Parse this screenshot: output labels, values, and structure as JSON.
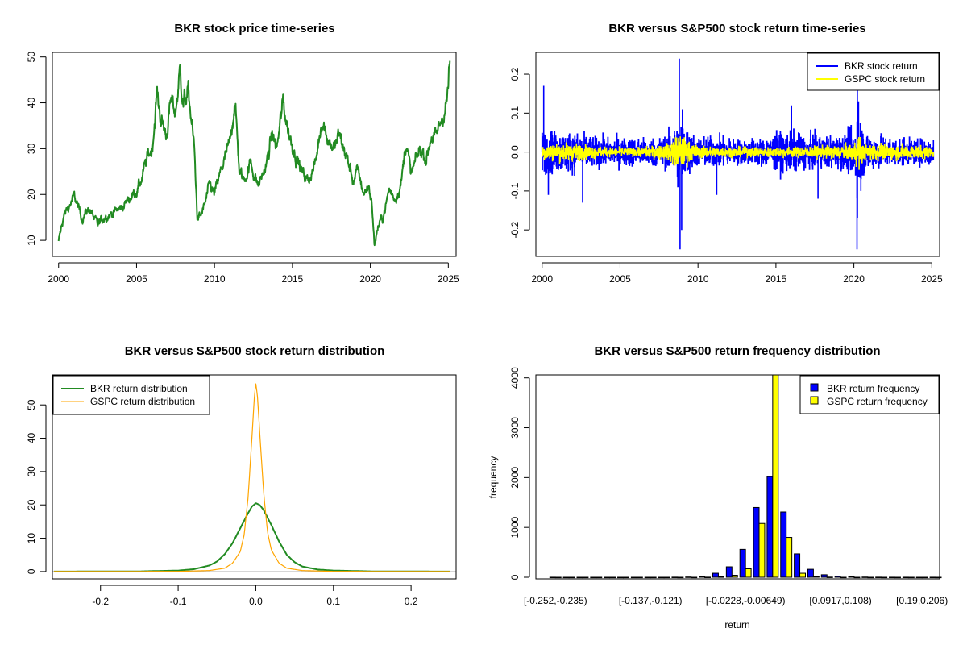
{
  "chart_data": [
    {
      "id": "price",
      "type": "line",
      "title": "BKR stock price time-series",
      "xlim": [
        1999.6,
        2025.5
      ],
      "ylim": [
        6.5,
        51
      ],
      "xticks": [
        2000,
        2005,
        2010,
        2015,
        2020,
        2025
      ],
      "yticks": [
        10,
        20,
        30,
        40,
        50
      ],
      "series": [
        {
          "color": "#228B22",
          "x": [
            2000.0,
            2000.3,
            2000.6,
            2001.0,
            2001.5,
            2002.0,
            2002.5,
            2003.0,
            2003.5,
            2004.0,
            2004.5,
            2005.0,
            2005.3,
            2005.7,
            2006.0,
            2006.3,
            2006.6,
            2006.9,
            2007.2,
            2007.5,
            2007.8,
            2008.0,
            2008.3,
            2008.5,
            2008.7,
            2008.9,
            2009.1,
            2009.4,
            2009.7,
            2010.0,
            2010.5,
            2011.0,
            2011.3,
            2011.6,
            2011.9,
            2012.3,
            2012.8,
            2013.3,
            2013.7,
            2014.0,
            2014.4,
            2014.8,
            2015.2,
            2015.6,
            2016.0,
            2016.5,
            2016.9,
            2017.3,
            2017.7,
            2018.0,
            2018.5,
            2018.9,
            2019.2,
            2019.6,
            2019.9,
            2020.1,
            2020.25,
            2020.5,
            2020.8,
            2021.2,
            2021.6,
            2022.0,
            2022.3,
            2022.6,
            2022.9,
            2023.2,
            2023.6,
            2023.9,
            2024.2,
            2024.6,
            2024.9,
            2025.1
          ],
          "values": [
            9.5,
            15.0,
            17.0,
            19.5,
            15.0,
            17.0,
            13.0,
            15.5,
            16.0,
            17.0,
            19.0,
            21.0,
            23.0,
            28.0,
            30.0,
            42.0,
            36.0,
            33.0,
            40.0,
            38.0,
            47.0,
            40.0,
            42.0,
            37.0,
            30.0,
            15.0,
            15.0,
            18.0,
            22.0,
            20.0,
            26.0,
            31.0,
            41.0,
            25.0,
            23.0,
            27.0,
            22.0,
            26.0,
            33.0,
            30.0,
            40.0,
            33.0,
            29.0,
            25.0,
            23.0,
            27.0,
            37.0,
            32.0,
            30.0,
            33.0,
            28.0,
            23.0,
            25.0,
            20.0,
            22.0,
            18.0,
            9.0,
            13.0,
            15.0,
            21.0,
            19.0,
            23.0,
            32.0,
            24.0,
            27.0,
            30.0,
            28.0,
            33.0,
            32.0,
            37.0,
            40.0,
            48.0
          ]
        }
      ]
    },
    {
      "id": "returns",
      "type": "line",
      "title": "BKR versus S&P500 stock return time-series",
      "xlim": [
        1999.6,
        2025.5
      ],
      "ylim": [
        -0.268,
        0.256
      ],
      "xticks": [
        2000,
        2005,
        2010,
        2015,
        2020,
        2025
      ],
      "yticks": [
        -0.2,
        -0.1,
        0.0,
        0.1,
        0.2
      ],
      "ytick_labels": [
        "-0.2",
        "-0.1",
        "0.0",
        "0.1",
        "0.2"
      ],
      "legend_position": "top-right",
      "series": [
        {
          "name": "BKR stock return",
          "color": "#0000FF",
          "envelope_x": [
            2000,
            2001,
            2002,
            2003,
            2004,
            2005,
            2006,
            2007,
            2008,
            2008.7,
            2009.0,
            2009.5,
            2010,
            2011,
            2012,
            2013,
            2014,
            2015,
            2016,
            2017,
            2018,
            2019,
            2020.0,
            2020.2,
            2020.5,
            2021,
            2022,
            2023,
            2024,
            2025
          ],
          "envelope_amplitude": [
            0.055,
            0.05,
            0.05,
            0.04,
            0.035,
            0.035,
            0.035,
            0.035,
            0.04,
            0.085,
            0.075,
            0.05,
            0.035,
            0.04,
            0.035,
            0.03,
            0.035,
            0.045,
            0.05,
            0.04,
            0.04,
            0.04,
            0.055,
            0.13,
            0.07,
            0.045,
            0.04,
            0.035,
            0.03,
            0.035
          ],
          "spikes": [
            [
              2000.1,
              0.17
            ],
            [
              2000.4,
              -0.11
            ],
            [
              2002.6,
              -0.13
            ],
            [
              2008.8,
              0.24
            ],
            [
              2008.85,
              -0.25
            ],
            [
              2008.95,
              -0.2
            ],
            [
              2009.0,
              0.11
            ],
            [
              2011.2,
              -0.11
            ],
            [
              2016.0,
              0.12
            ],
            [
              2017.7,
              -0.12
            ],
            [
              2020.2,
              -0.25
            ],
            [
              2020.22,
              0.16
            ],
            [
              2020.3,
              0.13
            ],
            [
              2020.45,
              -0.1
            ]
          ]
        },
        {
          "name": "GSPC stock return",
          "color": "#FFFF00",
          "envelope_x": [
            2000,
            2002,
            2004,
            2006,
            2008,
            2008.8,
            2009.3,
            2010,
            2012,
            2015,
            2018,
            2020.0,
            2020.2,
            2020.6,
            2022,
            2025
          ],
          "envelope_amplitude": [
            0.022,
            0.022,
            0.012,
            0.01,
            0.02,
            0.045,
            0.03,
            0.015,
            0.012,
            0.012,
            0.015,
            0.02,
            0.05,
            0.02,
            0.02,
            0.015
          ]
        }
      ]
    },
    {
      "id": "density",
      "type": "line",
      "title": "BKR versus S&P500 stock return distribution",
      "xlim": [
        -0.262,
        0.258
      ],
      "ylim": [
        -2.2,
        59
      ],
      "xticks": [
        -0.2,
        -0.1,
        0.0,
        0.1,
        0.2
      ],
      "xtick_labels": [
        "-0.2",
        "-0.1",
        "0.0",
        "0.1",
        "0.2"
      ],
      "yticks": [
        0,
        10,
        20,
        30,
        40,
        50
      ],
      "legend_position": "top-left",
      "series": [
        {
          "name": "BKR return distribution",
          "color": "#228B22",
          "x": [
            -0.26,
            -0.15,
            -0.1,
            -0.08,
            -0.06,
            -0.05,
            -0.04,
            -0.03,
            -0.02,
            -0.01,
            -0.005,
            0.0,
            0.005,
            0.01,
            0.02,
            0.03,
            0.04,
            0.05,
            0.06,
            0.08,
            0.1,
            0.15,
            0.25
          ],
          "values": [
            0,
            0.05,
            0.3,
            0.7,
            1.8,
            3.0,
            5.2,
            8.5,
            13.0,
            17.5,
            19.5,
            20.5,
            20.0,
            18.5,
            14.0,
            9.0,
            5.0,
            2.8,
            1.5,
            0.6,
            0.3,
            0.05,
            0
          ]
        },
        {
          "name": "GSPC return distribution",
          "color": "#FFA500",
          "x": [
            -0.26,
            -0.1,
            -0.06,
            -0.04,
            -0.03,
            -0.02,
            -0.015,
            -0.01,
            -0.005,
            -0.002,
            0.0,
            0.002,
            0.005,
            0.01,
            0.015,
            0.02,
            0.03,
            0.04,
            0.06,
            0.1,
            0.25
          ],
          "values": [
            0,
            0.05,
            0.3,
            1.0,
            2.5,
            6.0,
            11.0,
            22.0,
            40.0,
            52.0,
            56.5,
            53.0,
            42.0,
            24.0,
            12.0,
            6.5,
            2.5,
            1.0,
            0.3,
            0.05,
            0
          ]
        }
      ]
    },
    {
      "id": "histogram",
      "type": "bar",
      "title": "BKR versus S&P500 return frequency distribution",
      "xlabel": "return",
      "ylabel": "frequency",
      "ylim": [
        0,
        4060
      ],
      "yticks": [
        0,
        1000,
        2000,
        3000,
        4000
      ],
      "legend_position": "top-right",
      "category_labels_shown": [
        {
          "index": 0,
          "label": "[-0.252,-0.235)"
        },
        {
          "index": 7,
          "label": "[-0.137,-0.121)"
        },
        {
          "index": 14,
          "label": "[-0.0228,-0.00649)"
        },
        {
          "index": 21,
          "label": "[0.0917,0.108)"
        },
        {
          "index": 27,
          "label": "[0.19,0.206)"
        }
      ],
      "n_categories": 29,
      "series": [
        {
          "name": "BKR return frequency",
          "color": "#0000FF",
          "values": [
            1,
            0,
            0,
            0,
            0,
            0,
            0,
            0,
            0,
            2,
            5,
            15,
            80,
            210,
            560,
            1400,
            2020,
            1310,
            470,
            160,
            50,
            20,
            10,
            4,
            2,
            1,
            1,
            0,
            1
          ]
        },
        {
          "name": "GSPC return frequency",
          "color": "#FFFF00",
          "values": [
            0,
            0,
            0,
            0,
            0,
            0,
            0,
            0,
            0,
            0,
            0,
            2,
            8,
            40,
            170,
            1080,
            4100,
            800,
            80,
            10,
            3,
            0,
            0,
            0,
            0,
            0,
            0,
            0,
            0
          ]
        }
      ]
    }
  ]
}
